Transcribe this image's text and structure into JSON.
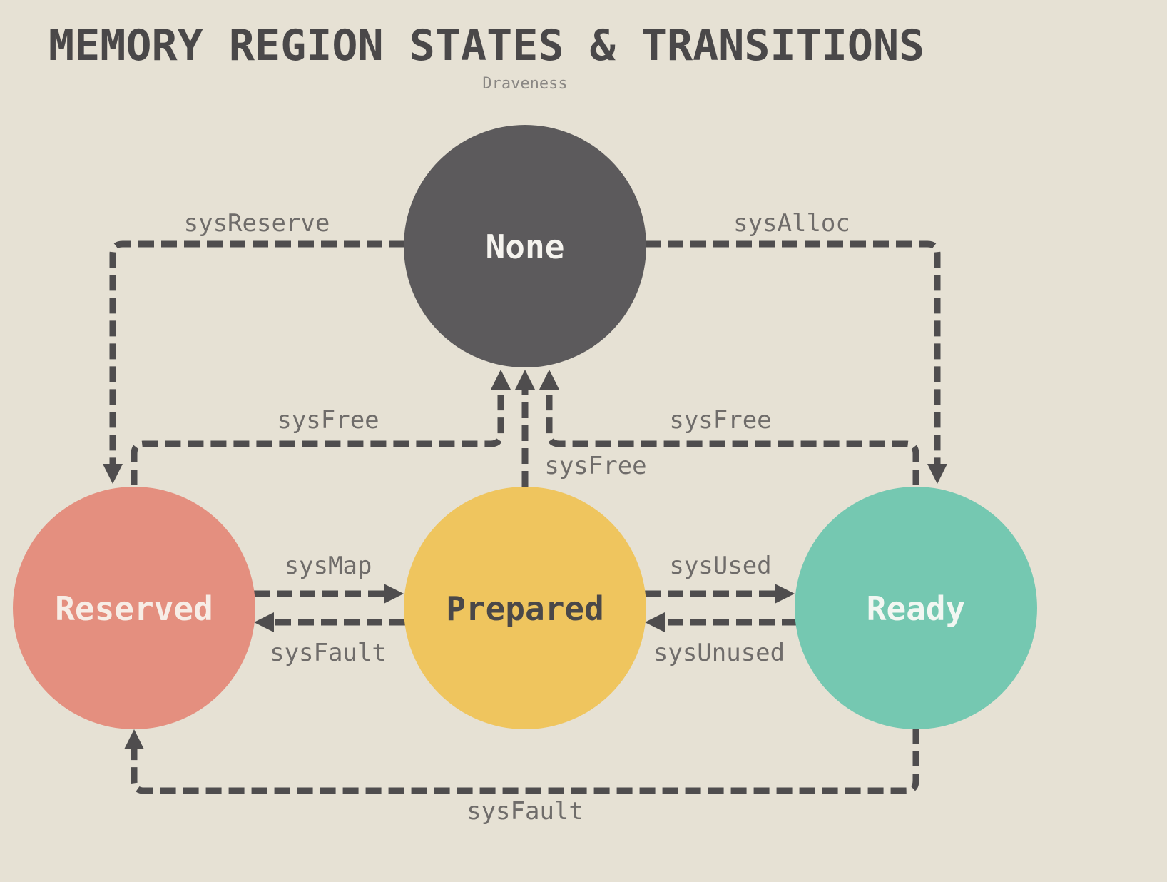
{
  "title": "MEMORY REGION STATES & TRANSITIONS",
  "author": "Draveness",
  "colors": {
    "background": "#e6e1d4",
    "edge": "#4f4d4e",
    "label": "#6f6c6a"
  },
  "states": {
    "none": {
      "label": "None",
      "fill": "#5c5a5c",
      "text_color": "#f5f3ee"
    },
    "reserved": {
      "label": "Reserved",
      "fill": "#e48f7f",
      "text_color": "#f7ede6"
    },
    "prepared": {
      "label": "Prepared",
      "fill": "#efc55e",
      "text_color": "#4a4849"
    },
    "ready": {
      "label": "Ready",
      "fill": "#75c8b1",
      "text_color": "#f2f7f2"
    }
  },
  "transitions": {
    "none_to_reserved": {
      "label": "sysReserve",
      "from": "None",
      "to": "Reserved"
    },
    "none_to_ready": {
      "label": "sysAlloc",
      "from": "None",
      "to": "Ready"
    },
    "reserved_to_none": {
      "label": "sysFree",
      "from": "Reserved",
      "to": "None"
    },
    "ready_to_none": {
      "label": "sysFree",
      "from": "Ready",
      "to": "None"
    },
    "prepared_to_none": {
      "label": "sysFree",
      "from": "Prepared",
      "to": "None"
    },
    "reserved_to_prepared": {
      "label": "sysMap",
      "from": "Reserved",
      "to": "Prepared"
    },
    "prepared_to_reserved": {
      "label": "sysFault",
      "from": "Prepared",
      "to": "Reserved"
    },
    "prepared_to_ready": {
      "label": "sysUsed",
      "from": "Prepared",
      "to": "Ready"
    },
    "ready_to_prepared": {
      "label": "sysUnused",
      "from": "Ready",
      "to": "Prepared"
    },
    "ready_to_reserved": {
      "label": "sysFault",
      "from": "Ready",
      "to": "Reserved"
    }
  }
}
